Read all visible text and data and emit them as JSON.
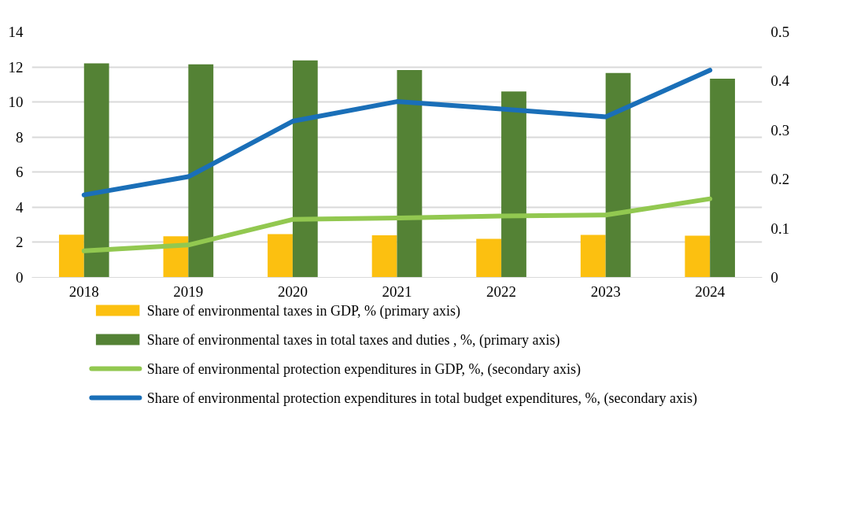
{
  "chart_data": {
    "type": "bar",
    "categories": [
      "2018",
      "2019",
      "2020",
      "2021",
      "2022",
      "2023",
      "2024"
    ],
    "series": [
      {
        "name": "Share of environmental taxes in GDP, % (primary axis)",
        "color": "#fcc010",
        "values": [
          2.43,
          2.35,
          2.47,
          2.4,
          2.2,
          2.42,
          2.38
        ]
      },
      {
        "name": "Share of environmental taxes in total taxes and duties , %, (primary axis)",
        "color": "#548235",
        "values": [
          12.2,
          12.15,
          12.37,
          11.82,
          10.6,
          11.65,
          11.33
        ]
      },
      {
        "name": "Share of environmental protection expenditures in GDP, %, (secondary axis)",
        "type": "line",
        "axis": "y2",
        "color": "#92c850",
        "values": [
          0.054,
          0.066,
          0.118,
          0.121,
          0.125,
          0.127,
          0.16
        ]
      },
      {
        "name": "Share of environmental protection expenditures in total budget expenditures, %, (secondary axis)",
        "type": "line",
        "axis": "y2",
        "color": "#1a6fb8",
        "values": [
          0.168,
          0.205,
          0.318,
          0.358,
          0.343,
          0.327,
          0.422
        ]
      }
    ],
    "ylim": [
      0,
      14
    ],
    "yticks": [
      0,
      2,
      4,
      6,
      8,
      10,
      12,
      14
    ],
    "y2lim": [
      0,
      0.5
    ],
    "y2ticks": [
      0,
      {
        "value": 0.1,
        "label": "0.1"
      },
      {
        "value": 0.2,
        "label": "0.2"
      },
      {
        "value": 0.3,
        "label": "0.3"
      },
      {
        "value": 0.4,
        "label": "0.4"
      },
      {
        "value": 0.5,
        "label": "0.5"
      }
    ],
    "grid": "y",
    "legend": "bottom",
    "marker": "none",
    "line_style": "solid"
  }
}
